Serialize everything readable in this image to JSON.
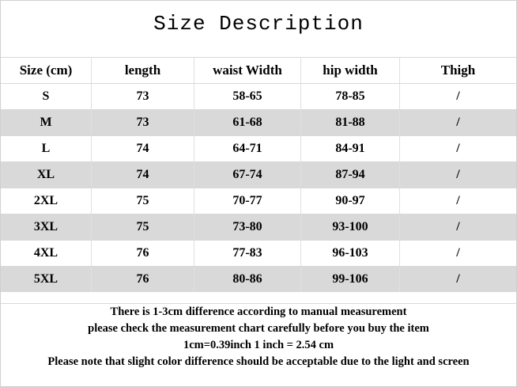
{
  "title": "Size Description",
  "table": {
    "header": [
      "Size (cm)",
      "length",
      "waist Width",
      "hip width",
      "Thigh"
    ],
    "rows": [
      [
        "S",
        "73",
        "58-65",
        "78-85",
        "/"
      ],
      [
        "M",
        "73",
        "61-68",
        "81-88",
        "/"
      ],
      [
        "L",
        "74",
        "64-71",
        "84-91",
        "/"
      ],
      [
        "XL",
        "74",
        "67-74",
        "87-94",
        "/"
      ],
      [
        "2XL",
        "75",
        "70-77",
        "90-97",
        "/"
      ],
      [
        "3XL",
        "75",
        "73-80",
        "93-100",
        "/"
      ],
      [
        "4XL",
        "76",
        "77-83",
        "96-103",
        "/"
      ],
      [
        "5XL",
        "76",
        "80-86",
        "99-106",
        "/"
      ]
    ]
  },
  "notes": [
    "There is 1-3cm difference according to manual measurement",
    "please check the measurement chart carefully before you buy the item",
    "1cm=0.39inch  1 inch = 2.54 cm",
    "Please note that slight color difference should be acceptable due to the light and screen"
  ]
}
